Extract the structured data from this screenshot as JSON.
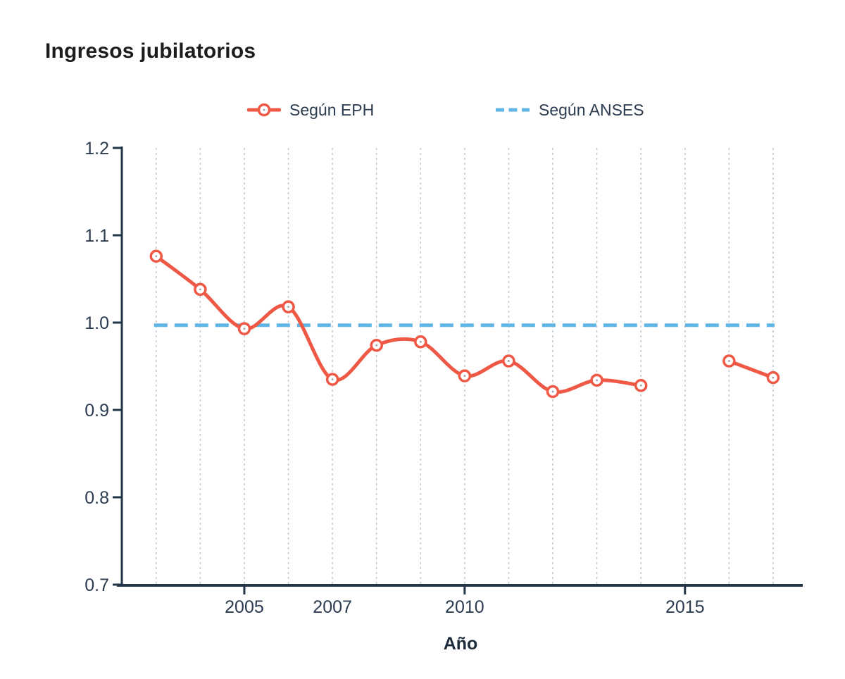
{
  "title": "Ingresos jubilatorios",
  "legend": {
    "position": "top-center",
    "items": [
      {
        "label": "Según EPH",
        "marker": "line-circle",
        "color": "#ee5845"
      },
      {
        "label": "Según ANSES",
        "marker": "dashed-line",
        "color": "#61b6e6"
      }
    ]
  },
  "chart_data": {
    "type": "line",
    "title": "Ingresos jubilatorios",
    "xlabel": "Año",
    "ylabel": "",
    "ylim": [
      0.7,
      1.2
    ],
    "grid": "vertical-dashed",
    "legend_position": "top-center",
    "yticks": [
      "0.7",
      "0.8",
      "0.9",
      "1.0",
      "1.1",
      "1.2"
    ],
    "ytick_values": [
      0.7,
      0.8,
      0.9,
      1.0,
      1.1,
      1.2
    ],
    "xticks": [
      {
        "value": 2005,
        "label": "2005",
        "major_tick": true
      },
      {
        "value": 2007,
        "label": "2007",
        "major_tick": false
      },
      {
        "value": 2010,
        "label": "2010",
        "major_tick": true
      },
      {
        "value": 2015,
        "label": "2015",
        "major_tick": true
      }
    ],
    "gridline_years": [
      2003,
      2004,
      2005,
      2006,
      2007,
      2008,
      2009,
      2010,
      2011,
      2012,
      2013,
      2014,
      2015,
      2016,
      2017
    ],
    "series": [
      {
        "name": "Según EPH",
        "type": "line+markers",
        "smoothing": "spline",
        "color": "#ee5845",
        "x": [
          2003,
          2004,
          2005,
          2006,
          2007,
          2008,
          2009,
          2010,
          2011,
          2012,
          2013,
          2014,
          2015,
          2016,
          2017
        ],
        "y": [
          1.076,
          1.038,
          0.993,
          1.018,
          0.935,
          0.974,
          0.978,
          0.939,
          0.956,
          0.921,
          0.934,
          0.928,
          null,
          0.956,
          0.937
        ]
      },
      {
        "name": "Según ANSES",
        "type": "dashed-line",
        "color": "#61b6e6",
        "x": [
          2003,
          2017
        ],
        "y": [
          0.997,
          0.997
        ]
      }
    ],
    "annotations": [
      {
        "x": 2005,
        "y": 0.996,
        "marker": "dark-point",
        "color": "#1d2735"
      }
    ]
  },
  "colors": {
    "eph_line": "#ee5845",
    "anses_line": "#61b6e6",
    "axis": "#243449",
    "tick_text": "#2c3c50",
    "gridline": "#c2c7cc",
    "marker_center_dot": "#9aa0a6",
    "title_text": "#1c1c1c"
  }
}
